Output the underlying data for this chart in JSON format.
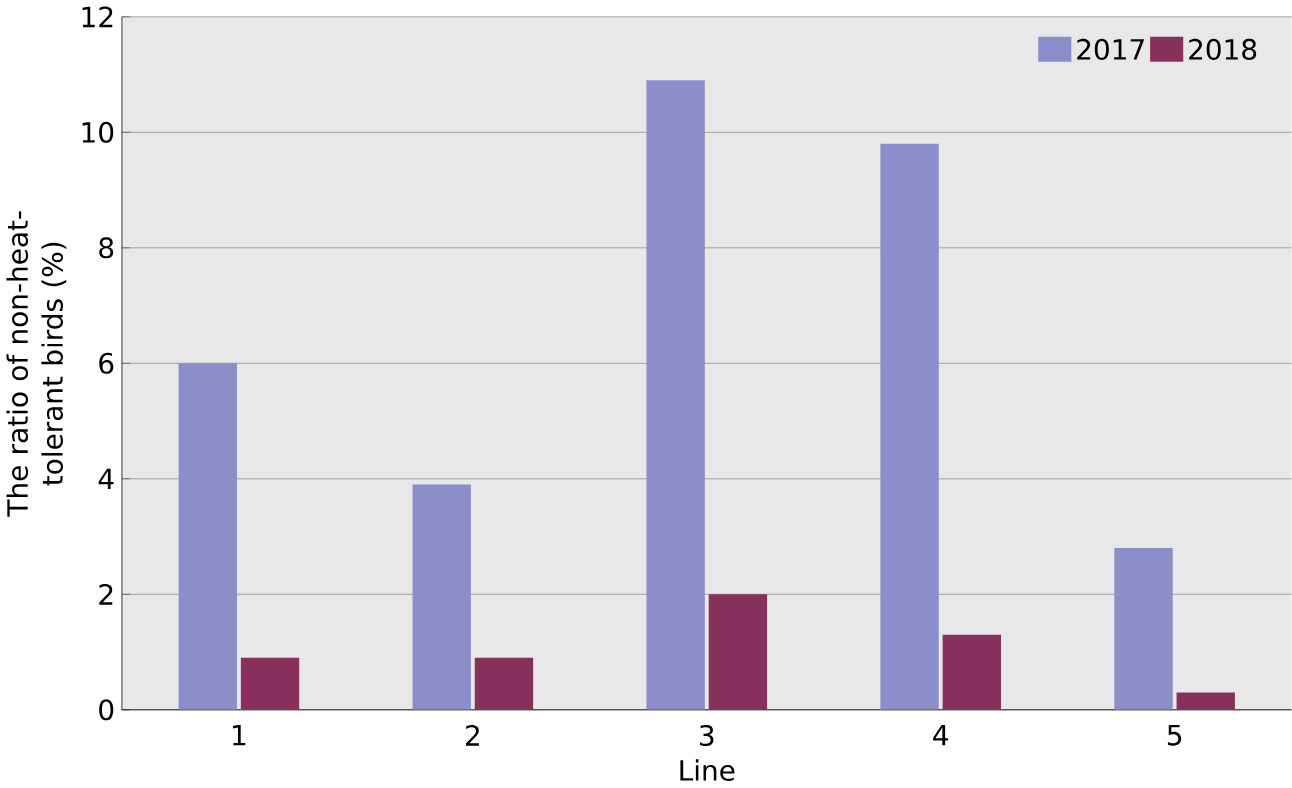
{
  "chart_data": {
    "type": "bar",
    "xlabel": "Line",
    "ylabel": "The ratio of non-heat-tolerant birds (%)",
    "categories": [
      "1",
      "2",
      "3",
      "4",
      "5"
    ],
    "series": [
      {
        "name": "2017",
        "color": "#8b8ec8",
        "values": [
          6.0,
          3.9,
          10.9,
          9.8,
          2.8
        ]
      },
      {
        "name": "2018",
        "color": "#88305c",
        "values": [
          0.9,
          0.9,
          2.0,
          1.3,
          0.3
        ]
      }
    ],
    "ylim": [
      0,
      12
    ],
    "yticks": [
      0,
      2,
      4,
      6,
      8,
      10,
      12
    ],
    "grid": "y",
    "legend": "top right"
  }
}
